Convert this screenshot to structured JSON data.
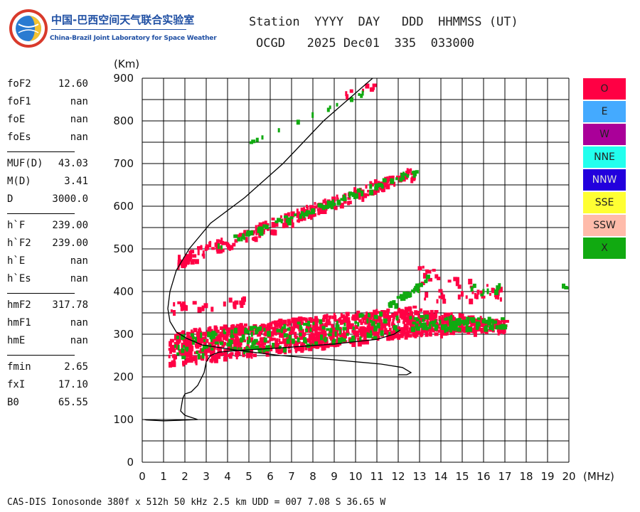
{
  "header": {
    "org_cn": "中国-巴西空间天气联合实验室",
    "org_en": "China-Brazil Joint Laboratory for Space Weather",
    "line1": "Station  YYYY  DAY   DDD  HHMMSS (UT)",
    "line2": "OCGD   2025 Dec01  335  033000"
  },
  "params": [
    {
      "name": "foF2",
      "value": "12.60"
    },
    {
      "name": "foF1",
      "value": "nan"
    },
    {
      "name": "foE",
      "value": "nan"
    },
    {
      "name": "foEs",
      "value": "nan"
    },
    {
      "sep": true
    },
    {
      "name": "MUF(D)",
      "value": "43.03"
    },
    {
      "name": "M(D)",
      "value": "3.41"
    },
    {
      "name": "D",
      "value": "3000.0"
    },
    {
      "sep": true
    },
    {
      "name": "h`F",
      "value": "239.00"
    },
    {
      "name": "h`F2",
      "value": "239.00"
    },
    {
      "name": "h`E",
      "value": "nan"
    },
    {
      "name": "h`Es",
      "value": "nan"
    },
    {
      "sep": true
    },
    {
      "name": "hmF2",
      "value": "317.78"
    },
    {
      "name": "hmF1",
      "value": "nan"
    },
    {
      "name": "hmE",
      "value": "nan"
    },
    {
      "sep": true
    },
    {
      "name": "fmin",
      "value": "2.65"
    },
    {
      "name": "fxI",
      "value": "17.10"
    },
    {
      "name": "B0",
      "value": "65.55"
    }
  ],
  "footer": "CAS-DIS Ionosonde 380f x 512h 50 kHz 2.5 km UDD = 007 7.08 S 36.65 W",
  "chart_data": {
    "type": "scatter",
    "title": "",
    "xlabel": "(MHz)",
    "ylabel": "(Km)",
    "xlim": [
      0,
      20
    ],
    "ylim": [
      0,
      900
    ],
    "xticks": [
      "0",
      "1",
      "2",
      "3",
      "4",
      "5",
      "6",
      "7",
      "8",
      "9",
      "10",
      "11",
      "12",
      "13",
      "14",
      "15",
      "16",
      "17",
      "18",
      "19",
      "20"
    ],
    "yticks": [
      "0",
      "100",
      "200",
      "300",
      "400",
      "500",
      "600",
      "700",
      "800",
      "900"
    ],
    "grid": true,
    "legend": [
      {
        "label": "O",
        "color": "#ff0044",
        "text": "#222222"
      },
      {
        "label": "E",
        "color": "#44aaff",
        "text": "#222222"
      },
      {
        "label": "W",
        "color": "#aa0099",
        "text": "#222222"
      },
      {
        "label": "NNE",
        "color": "#22ffee",
        "text": "#222222"
      },
      {
        "label": "NNW",
        "color": "#2200dd",
        "text": "#dddddd"
      },
      {
        "label": "SSE",
        "color": "#ffff33",
        "text": "#222222"
      },
      {
        "label": "SSW",
        "color": "#ffbbaa",
        "text": "#222222"
      },
      {
        "label": "X",
        "color": "#11aa11",
        "text": "#222222"
      }
    ],
    "profile_curve": [
      [
        10.8,
        900
      ],
      [
        8.5,
        800
      ],
      [
        6.6,
        700
      ],
      [
        4.8,
        620
      ],
      [
        3.2,
        560
      ],
      [
        2.2,
        500
      ],
      [
        1.6,
        450
      ],
      [
        1.3,
        400
      ],
      [
        1.2,
        360
      ],
      [
        1.3,
        330
      ],
      [
        1.6,
        305
      ],
      [
        2.1,
        290
      ],
      [
        2.8,
        275
      ],
      [
        4.5,
        262
      ],
      [
        6.5,
        250
      ],
      [
        9,
        240
      ],
      [
        11.2,
        230
      ],
      [
        12.2,
        222
      ],
      [
        12.6,
        210
      ],
      [
        12.4,
        205
      ],
      [
        12.0,
        205
      ]
    ],
    "virtual_height_trace": [
      [
        12.1,
        310
      ],
      [
        11.8,
        300
      ],
      [
        11,
        288
      ],
      [
        9,
        277
      ],
      [
        6.5,
        268
      ],
      [
        4.5,
        262
      ],
      [
        3.6,
        258
      ],
      [
        3.2,
        250
      ],
      [
        3.0,
        235
      ],
      [
        2.9,
        210
      ],
      [
        2.6,
        180
      ],
      [
        2.3,
        165
      ],
      [
        2.0,
        160
      ],
      [
        1.9,
        150
      ],
      [
        1.8,
        120
      ],
      [
        2.0,
        110
      ],
      [
        2.3,
        105
      ],
      [
        2.6,
        100
      ],
      [
        1.6,
        98
      ],
      [
        1.0,
        97
      ],
      [
        0.6,
        98
      ],
      [
        0.2,
        99
      ],
      [
        0.1,
        100
      ]
    ],
    "series": [
      {
        "name": "O",
        "color": "#ff0044",
        "bands": [
          {
            "x0": 1.2,
            "x1": 12.8,
            "ylo0": 230,
            "ylo1": 300,
            "yhi0": 310,
            "yhi1": 370,
            "density": 900
          },
          {
            "x0": 12.6,
            "x1": 17.0,
            "ylo0": 300,
            "ylo1": 310,
            "yhi0": 365,
            "yhi1": 335,
            "density": 260
          },
          {
            "x0": 1.6,
            "x1": 12.8,
            "ylo0": 460,
            "ylo1": 670,
            "yhi0": 490,
            "yhi1": 700,
            "density": 260
          },
          {
            "x0": 1.0,
            "x1": 5.0,
            "ylo0": 355,
            "ylo1": 370,
            "yhi0": 375,
            "yhi1": 390,
            "density": 30
          },
          {
            "x0": 12.8,
            "x1": 16.8,
            "ylo0": 380,
            "ylo1": 385,
            "yhi0": 470,
            "yhi1": 410,
            "density": 50
          },
          {
            "x0": 9.5,
            "x1": 10.8,
            "ylo0": 860,
            "ylo1": 880,
            "yhi0": 870,
            "yhi1": 895,
            "density": 8
          }
        ]
      },
      {
        "name": "X",
        "color": "#11aa11",
        "bands": [
          {
            "x0": 1.5,
            "x1": 12.0,
            "ylo0": 240,
            "ylo1": 300,
            "yhi0": 300,
            "yhi1": 360,
            "density": 160
          },
          {
            "x0": 12.5,
            "x1": 17.0,
            "ylo0": 310,
            "ylo1": 320,
            "yhi0": 350,
            "yhi1": 340,
            "density": 90
          },
          {
            "x0": 3.5,
            "x1": 12.9,
            "ylo0": 505,
            "ylo1": 680,
            "yhi0": 520,
            "yhi1": 697,
            "density": 90
          },
          {
            "x0": 11.5,
            "x1": 13.3,
            "ylo0": 360,
            "ylo1": 420,
            "yhi0": 375,
            "yhi1": 440,
            "density": 30
          },
          {
            "x0": 4.8,
            "x1": 10.6,
            "ylo0": 745,
            "ylo1": 870,
            "yhi0": 750,
            "yhi1": 880,
            "density": 14
          },
          {
            "x0": 15.0,
            "x1": 17.0,
            "ylo0": 395,
            "ylo1": 395,
            "yhi0": 420,
            "yhi1": 420,
            "density": 8
          },
          {
            "x0": 19.6,
            "x1": 19.9,
            "ylo0": 410,
            "ylo1": 410,
            "yhi0": 420,
            "yhi1": 420,
            "density": 3
          }
        ]
      }
    ]
  }
}
